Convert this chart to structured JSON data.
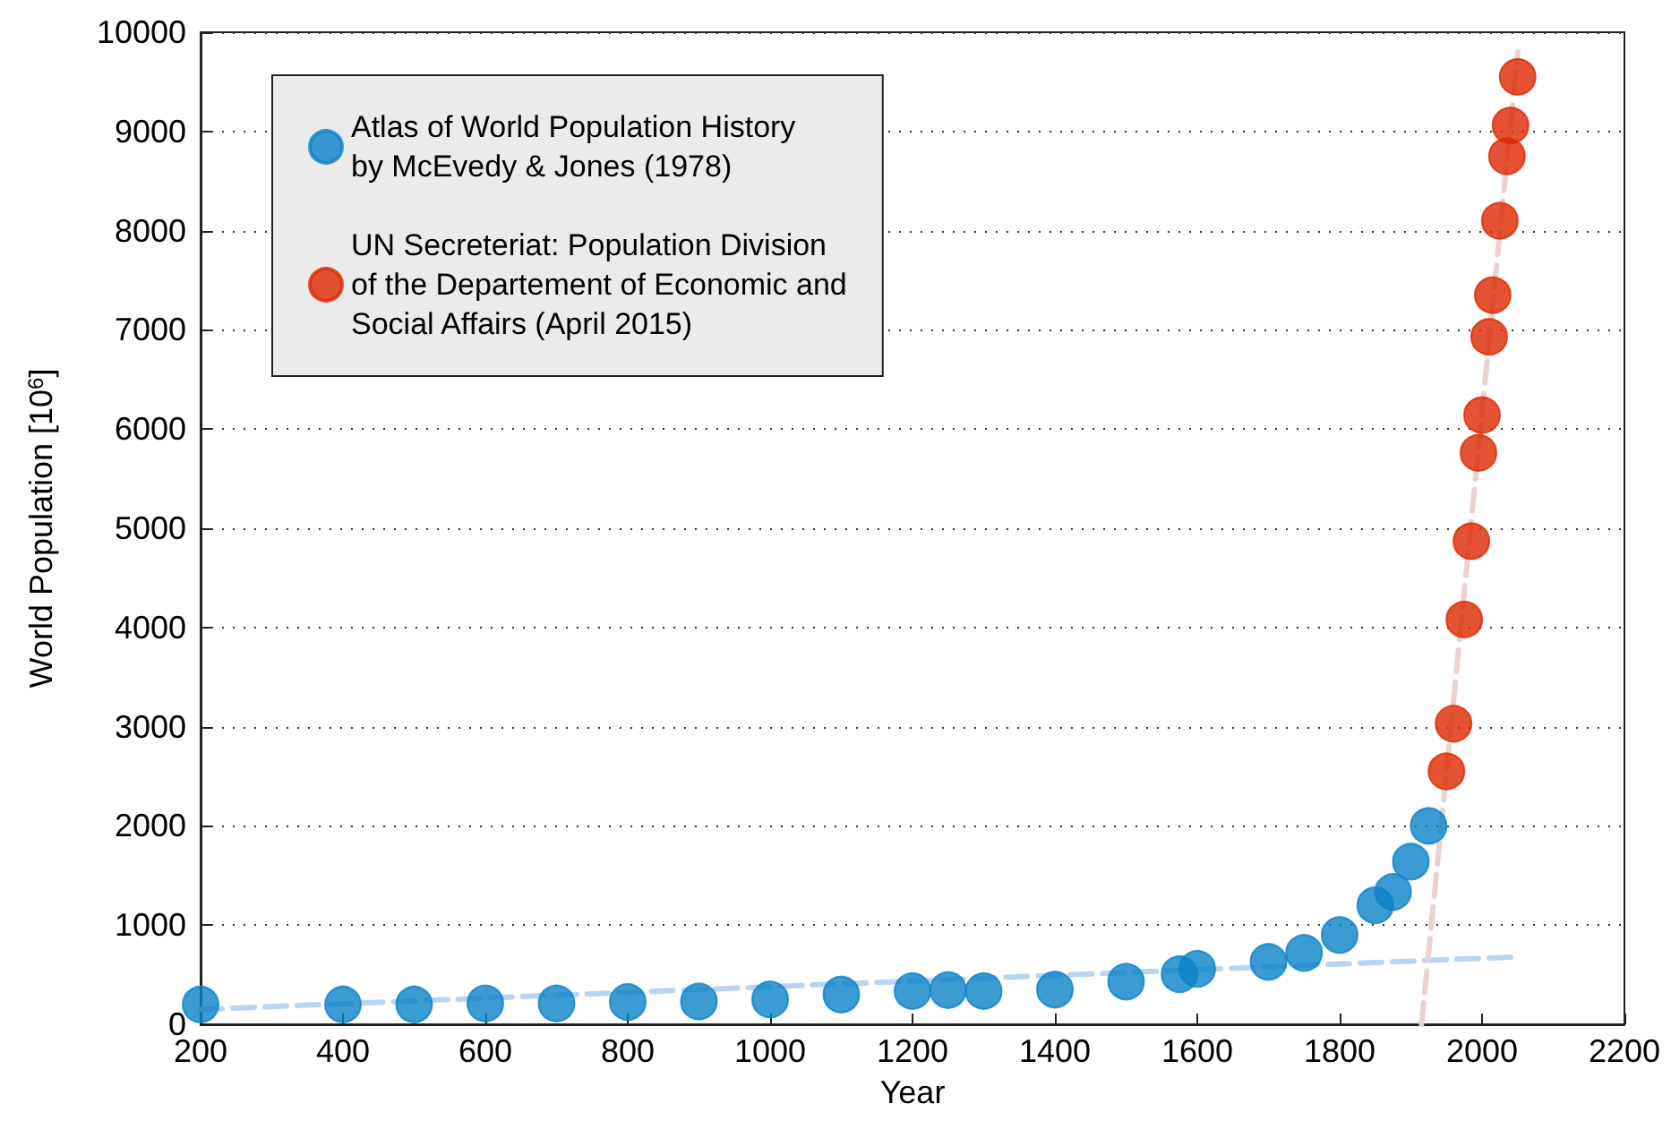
{
  "chart_data": {
    "type": "scatter",
    "xlabel": "Year",
    "ylabel": "World Population [10$^{6}$]",
    "xlim": [
      200,
      2200
    ],
    "xticks": [
      200,
      400,
      600,
      800,
      1000,
      1200,
      1400,
      1600,
      1800,
      2000,
      2200
    ],
    "ylim": [
      0,
      10000
    ],
    "yticks": [
      0,
      1000,
      2000,
      3000,
      4000,
      5000,
      6000,
      7000,
      8000,
      9000,
      10000
    ],
    "grid": "y",
    "legend": "top left",
    "marker": "circle",
    "series": [
      {
        "name": "Atlas of World Population History\nby McEvedy & Jones (1978)",
        "color": "#0a82c8",
        "x": [
          200,
          400,
          500,
          600,
          700,
          800,
          900,
          1000,
          1100,
          1200,
          1250,
          1300,
          1400,
          1500,
          1575,
          1600,
          1700,
          1750,
          1800,
          1850,
          1875,
          1900,
          1925
        ],
        "values": [
          200,
          200,
          200,
          210,
          210,
          225,
          230,
          250,
          300,
          335,
          345,
          335,
          350,
          430,
          505,
          560,
          630,
          720,
          900,
          1200,
          1335,
          1640,
          2000
        ]
      },
      {
        "name": "UN Secreteriat: Population Division\nof the Departement of Economic and\nSocial Affairs (April 2015)",
        "color": "#dd2800",
        "x": [
          1950,
          1960,
          1975,
          1985,
          1995,
          2000,
          2010,
          2015,
          2025,
          2035,
          2040,
          2050
        ],
        "values": [
          2550,
          3030,
          4080,
          4870,
          5760,
          6140,
          6930,
          7350,
          8100,
          8750,
          9060,
          9550
        ]
      },
      {
        "type": "line",
        "line_style": "dashed",
        "marker": "none",
        "color": "#b8d4f0",
        "x": [
          200,
          2050
        ],
        "values": [
          150,
          680
        ]
      },
      {
        "type": "line",
        "line_style": "dashed",
        "marker": "none",
        "color": "#ecd0d0",
        "x": [
          1915,
          2050
        ],
        "values": [
          0,
          9800
        ]
      }
    ]
  }
}
